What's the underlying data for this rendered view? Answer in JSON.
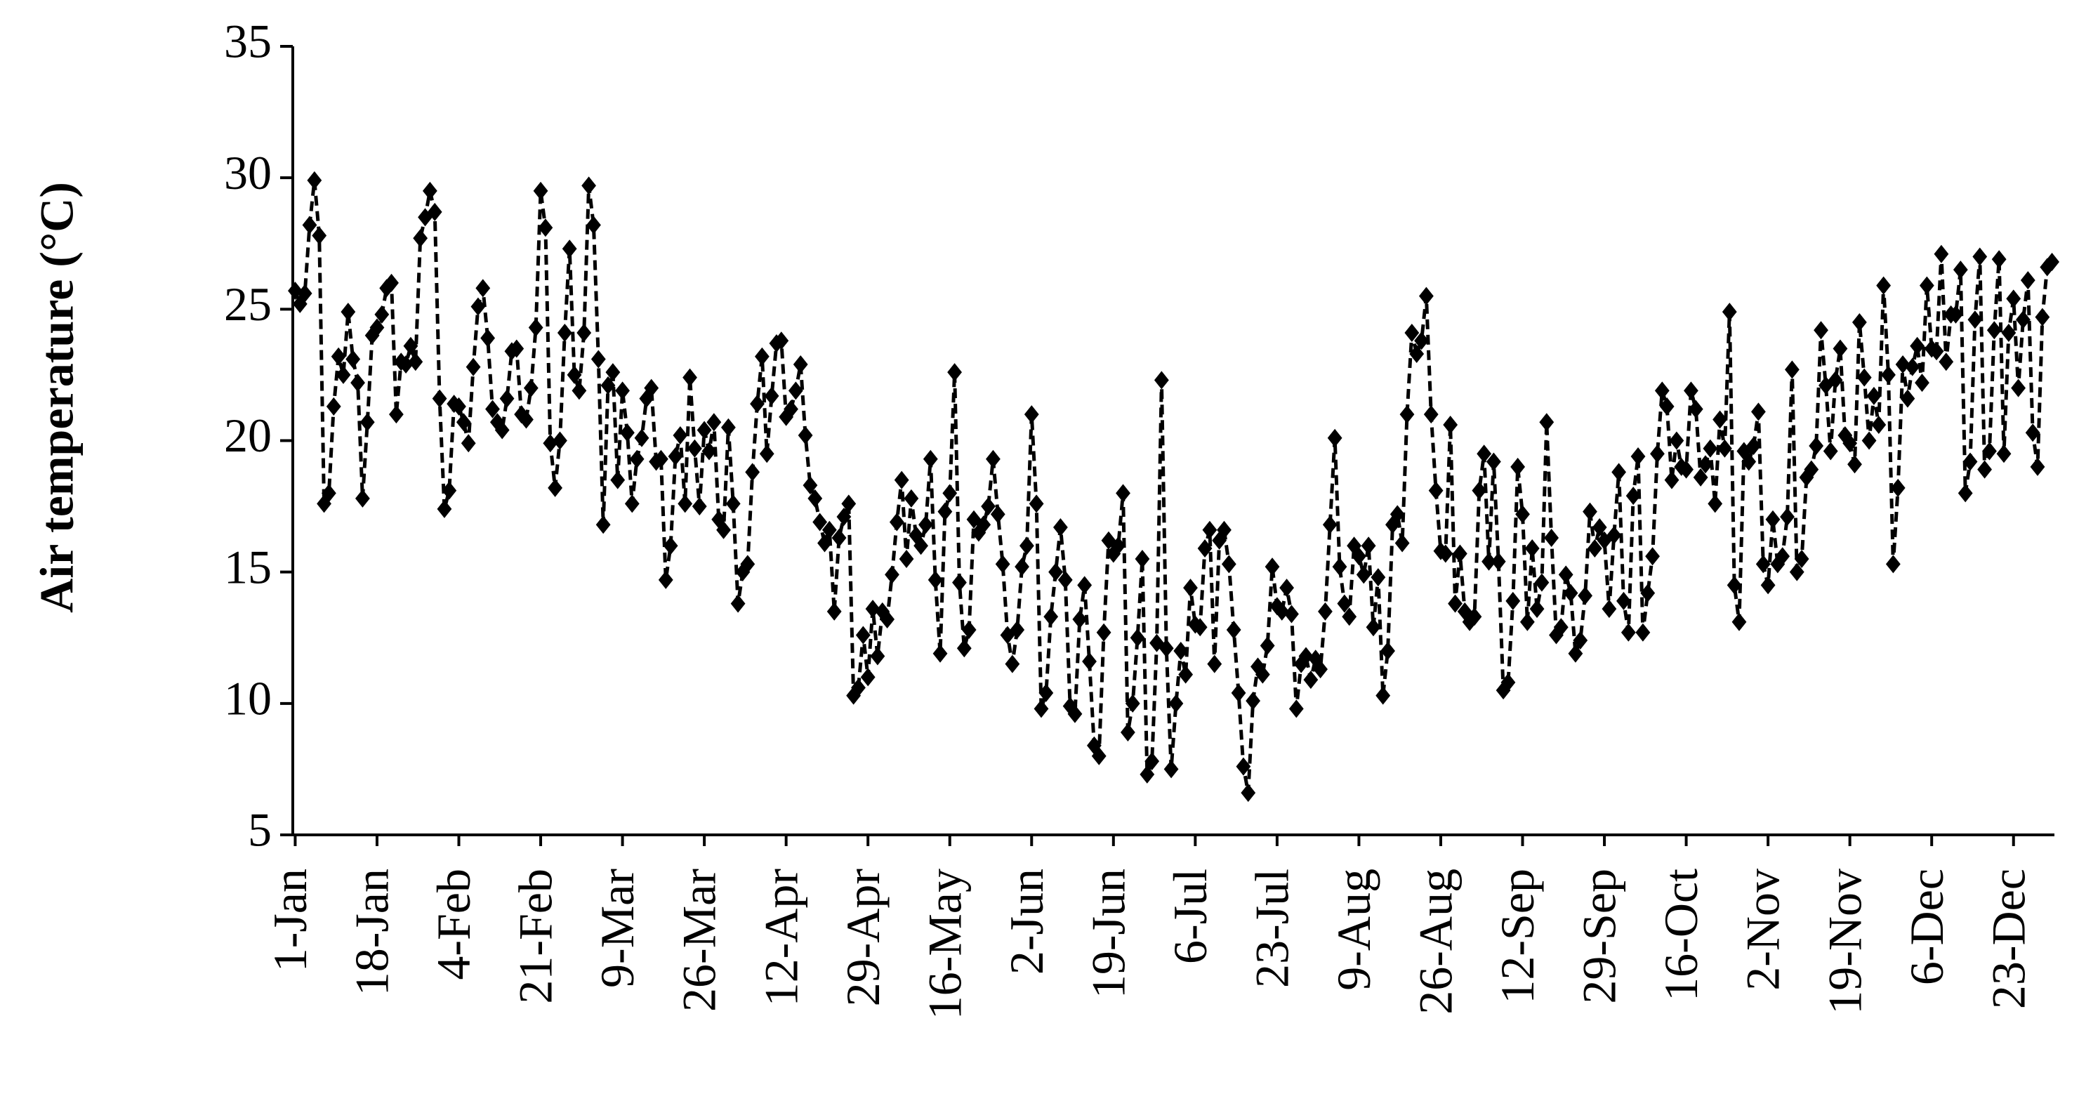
{
  "chart_data": {
    "type": "line",
    "y_label": "Air temperature (°C)",
    "color": "#000000",
    "ylim": [
      5,
      35
    ],
    "yticks": [
      5,
      10,
      15,
      20,
      25,
      30,
      35
    ],
    "categories": [
      "1-Jan",
      null,
      null,
      null,
      null,
      null,
      null,
      null,
      null,
      null,
      null,
      null,
      null,
      null,
      null,
      null,
      null,
      "18-Jan",
      null,
      null,
      null,
      null,
      null,
      null,
      null,
      null,
      null,
      null,
      null,
      null,
      null,
      null,
      null,
      null,
      "4-Feb",
      null,
      null,
      null,
      null,
      null,
      null,
      null,
      null,
      null,
      null,
      null,
      null,
      null,
      null,
      null,
      null,
      "21-Feb",
      null,
      null,
      null,
      null,
      null,
      null,
      null,
      null,
      null,
      null,
      null,
      null,
      null,
      null,
      null,
      null,
      "9-Mar",
      null,
      null,
      null,
      null,
      null,
      null,
      null,
      null,
      null,
      null,
      null,
      null,
      null,
      null,
      null,
      null,
      "26-Mar",
      null,
      null,
      null,
      null,
      null,
      null,
      null,
      null,
      null,
      null,
      null,
      null,
      null,
      null,
      null,
      null,
      "12-Apr",
      null,
      null,
      null,
      null,
      null,
      null,
      null,
      null,
      null,
      null,
      null,
      null,
      null,
      null,
      null,
      null,
      "29-Apr",
      null,
      null,
      null,
      null,
      null,
      null,
      null,
      null,
      null,
      null,
      null,
      null,
      null,
      null,
      null,
      null,
      "16-May",
      null,
      null,
      null,
      null,
      null,
      null,
      null,
      null,
      null,
      null,
      null,
      null,
      null,
      null,
      null,
      null,
      "2-Jun",
      null,
      null,
      null,
      null,
      null,
      null,
      null,
      null,
      null,
      null,
      null,
      null,
      null,
      null,
      null,
      null,
      "19-Jun",
      null,
      null,
      null,
      null,
      null,
      null,
      null,
      null,
      null,
      null,
      null,
      null,
      null,
      null,
      null,
      null,
      "6-Jul",
      null,
      null,
      null,
      null,
      null,
      null,
      null,
      null,
      null,
      null,
      null,
      null,
      null,
      null,
      null,
      null,
      "23-Jul",
      null,
      null,
      null,
      null,
      null,
      null,
      null,
      null,
      null,
      null,
      null,
      null,
      null,
      null,
      null,
      null,
      "9-Aug",
      null,
      null,
      null,
      null,
      null,
      null,
      null,
      null,
      null,
      null,
      null,
      null,
      null,
      null,
      null,
      null,
      "26-Aug",
      null,
      null,
      null,
      null,
      null,
      null,
      null,
      null,
      null,
      null,
      null,
      null,
      null,
      null,
      null,
      null,
      "12-Sep",
      null,
      null,
      null,
      null,
      null,
      null,
      null,
      null,
      null,
      null,
      null,
      null,
      null,
      null,
      null,
      null,
      "29-Sep",
      null,
      null,
      null,
      null,
      null,
      null,
      null,
      null,
      null,
      null,
      null,
      null,
      null,
      null,
      null,
      null,
      "16-Oct",
      null,
      null,
      null,
      null,
      null,
      null,
      null,
      null,
      null,
      null,
      null,
      null,
      null,
      null,
      null,
      null,
      "2-Nov",
      null,
      null,
      null,
      null,
      null,
      null,
      null,
      null,
      null,
      null,
      null,
      null,
      null,
      null,
      null,
      null,
      "19-Nov",
      null,
      null,
      null,
      null,
      null,
      null,
      null,
      null,
      null,
      null,
      null,
      null,
      null,
      null,
      null,
      null,
      "6-Dec",
      null,
      null,
      null,
      null,
      null,
      null,
      null,
      null,
      null,
      null,
      null,
      null,
      null,
      null,
      null,
      null,
      "23-Dec",
      null,
      null,
      null,
      null,
      null,
      null,
      null,
      null
    ],
    "values": [
      25.7,
      25.2,
      25.6,
      28.2,
      29.9,
      27.8,
      17.6,
      18,
      21.3,
      23.2,
      22.5,
      24.9,
      23.1,
      22.2,
      17.8,
      20.7,
      24,
      24.3,
      24.8,
      25.8,
      26,
      21,
      23,
      22.9,
      23.6,
      23,
      27.7,
      28.5,
      29.5,
      28.7,
      21.6,
      17.4,
      18.1,
      21.4,
      21.3,
      20.7,
      19.9,
      22.8,
      25.1,
      25.8,
      23.9,
      21.2,
      20.7,
      20.4,
      21.6,
      23.4,
      23.5,
      21,
      20.8,
      22,
      24.3,
      29.5,
      28.1,
      19.9,
      18.2,
      20,
      24.1,
      27.3,
      22.5,
      21.9,
      24.1,
      29.7,
      28.2,
      23.1,
      16.8,
      22.1,
      22.6,
      18.5,
      21.9,
      20.3,
      17.6,
      19.3,
      20.1,
      21.6,
      22,
      19.2,
      19.3,
      14.7,
      16,
      19.4,
      20.2,
      17.6,
      22.4,
      19.7,
      17.5,
      20.4,
      19.6,
      20.7,
      17,
      16.6,
      20.5,
      17.6,
      13.8,
      15,
      15.3,
      18.8,
      21.4,
      23.2,
      19.5,
      21.7,
      23.7,
      23.8,
      20.9,
      21.2,
      21.9,
      22.9,
      20.2,
      18.3,
      17.8,
      16.9,
      16.1,
      16.6,
      13.5,
      16.3,
      17.1,
      17.6,
      10.3,
      10.6,
      12.6,
      11,
      13.6,
      11.8,
      13.5,
      13.2,
      14.9,
      16.9,
      18.5,
      15.5,
      17.8,
      16.4,
      16,
      16.8,
      19.3,
      14.7,
      11.9,
      17.3,
      18,
      22.6,
      14.6,
      12.1,
      12.8,
      17,
      16.5,
      16.8,
      17.5,
      19.3,
      17.2,
      15.3,
      12.6,
      11.5,
      12.8,
      15.2,
      16,
      21,
      17.6,
      9.8,
      10.4,
      13.3,
      15,
      16.7,
      14.7,
      9.9,
      9.6,
      13.2,
      14.5,
      11.6,
      8.4,
      8,
      12.7,
      16.2,
      15.7,
      16,
      18,
      8.9,
      10,
      12.5,
      15.5,
      7.3,
      7.8,
      12.3,
      22.3,
      12.1,
      7.5,
      10,
      12,
      11.1,
      14.4,
      13,
      12.9,
      15.9,
      16.6,
      11.5,
      16.2,
      16.6,
      15.3,
      12.8,
      10.4,
      7.6,
      6.6,
      10.1,
      11.4,
      11.1,
      12.2,
      15.2,
      13.7,
      13.5,
      14.4,
      13.4,
      9.8,
      11.5,
      11.8,
      10.9,
      11.7,
      11.3,
      13.5,
      16.8,
      20.1,
      15.2,
      13.8,
      13.3,
      16,
      15.6,
      14.9,
      16,
      12.9,
      14.8,
      10.3,
      12,
      16.8,
      17.2,
      16.1,
      21,
      24.1,
      23.3,
      23.8,
      25.5,
      21,
      18.1,
      15.8,
      15.7,
      20.6,
      13.8,
      15.7,
      13.5,
      13.1,
      13.3,
      18.1,
      19.5,
      15.4,
      19.2,
      15.4,
      10.5,
      10.8,
      13.9,
      19,
      17.2,
      13.1,
      15.9,
      13.6,
      14.6,
      20.7,
      16.3,
      12.6,
      12.9,
      14.9,
      14.2,
      11.9,
      12.4,
      14.1,
      17.3,
      15.9,
      16.7,
      16.2,
      13.6,
      16.4,
      18.8,
      13.9,
      12.7,
      17.9,
      19.4,
      12.7,
      14.2,
      15.6,
      19.5,
      21.9,
      21.3,
      18.5,
      20,
      19,
      18.9,
      21.9,
      21.2,
      18.6,
      19.1,
      19.7,
      17.6,
      20.8,
      19.7,
      24.9,
      14.5,
      13.1,
      19.6,
      19.2,
      19.8,
      21.1,
      15.3,
      14.5,
      17,
      15.3,
      15.6,
      17.1,
      22.7,
      15,
      15.5,
      18.6,
      18.9,
      19.8,
      24.2,
      22.1,
      19.6,
      22.3,
      23.5,
      20.2,
      19.9,
      19.1,
      24.5,
      22.4,
      20,
      21.7,
      20.6,
      25.9,
      22.5,
      15.3,
      18.2,
      22.9,
      21.6,
      22.8,
      23.6,
      22.2,
      25.9,
      23.5,
      23.4,
      27.1,
      23,
      24.8,
      24.8,
      26.5,
      18,
      19.2,
      24.6,
      27,
      18.9,
      19.6,
      24.2,
      26.9,
      19.5,
      24.1,
      25.4,
      22,
      24.6,
      26.1,
      20.3,
      19,
      24.7,
      26.6,
      26.8
    ]
  }
}
